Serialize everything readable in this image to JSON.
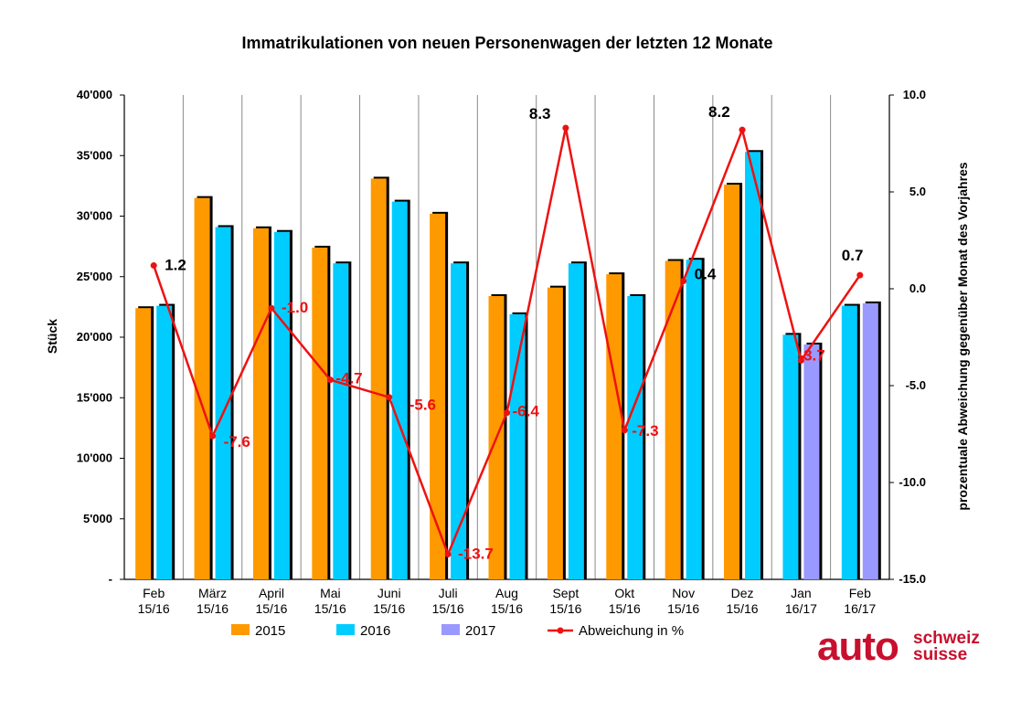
{
  "chart_data": {
    "type": "bar",
    "title": "Immatrikulationen von neuen Personenwagen der letzten 12 Monate",
    "ylabel_left": "Stück",
    "ylabel_right": "prozentuale Abweichung gegenüber Monat des Vorjahres",
    "ylim_left": [
      0,
      40000
    ],
    "ylim_right": [
      -15.0,
      10.0
    ],
    "yticks_left": [
      "-",
      "5'000",
      "10'000",
      "15'000",
      "20'000",
      "25'000",
      "30'000",
      "35'000",
      "40'000"
    ],
    "yticks_right": [
      "-15.0",
      "-10.0",
      "-5.0",
      "0.0",
      "5.0",
      "10.0"
    ],
    "categories": [
      [
        "Feb",
        "15/16"
      ],
      [
        "März",
        "15/16"
      ],
      [
        "April",
        "15/16"
      ],
      [
        "Mai",
        "15/16"
      ],
      [
        "Juni",
        "15/16"
      ],
      [
        "Juli",
        "15/16"
      ],
      [
        "Aug",
        "15/16"
      ],
      [
        "Sept",
        "15/16"
      ],
      [
        "Okt",
        "15/16"
      ],
      [
        "Nov",
        "15/16"
      ],
      [
        "Dez",
        "15/16"
      ],
      [
        "Jan",
        "16/17"
      ],
      [
        "Feb",
        "16/17"
      ]
    ],
    "series": [
      {
        "name": "2015",
        "axis": "left",
        "kind": "bar",
        "color": "#ff9900",
        "values": [
          22400,
          31500,
          29000,
          27400,
          33100,
          30200,
          23400,
          24100,
          25200,
          26300,
          32600,
          null,
          null
        ]
      },
      {
        "name": "2016",
        "axis": "left",
        "kind": "bar",
        "color": "#00ccff",
        "values": [
          22600,
          29100,
          28700,
          26100,
          31200,
          26100,
          21900,
          26100,
          23400,
          26400,
          35300,
          20200,
          22600
        ]
      },
      {
        "name": "2017",
        "axis": "left",
        "kind": "bar",
        "color": "#9999ff",
        "values": [
          null,
          null,
          null,
          null,
          null,
          null,
          null,
          null,
          null,
          null,
          null,
          19400,
          22800
        ]
      },
      {
        "name": "Abweichung in %",
        "axis": "right",
        "kind": "line",
        "color": "#ee1111",
        "values": [
          1.2,
          -7.6,
          -1.0,
          -4.7,
          -5.6,
          -13.7,
          -6.4,
          8.3,
          -7.3,
          0.4,
          8.2,
          -3.7,
          0.7
        ],
        "labels": [
          "1.2",
          "-7.6",
          "-1.0",
          "-4.7",
          "-5.6",
          "-13.7",
          "-6.4",
          "8.3",
          "-7.3",
          "0.4",
          "8.2",
          "-3.7",
          "0.7"
        ]
      }
    ],
    "legend_position": "bottom",
    "grid": "vertical-category-lines"
  },
  "logo": {
    "main": "auto",
    "top": "schweiz",
    "bottom": "suisse",
    "color": "#c8102e"
  }
}
